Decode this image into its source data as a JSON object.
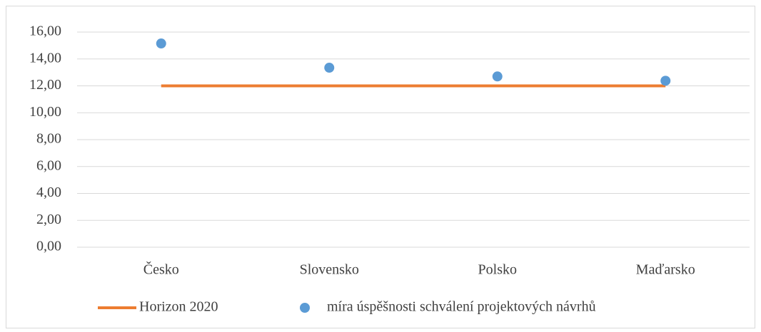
{
  "chart_data": {
    "type": "line",
    "categories": [
      "Česko",
      "Slovensko",
      "Polsko",
      "Maďarsko"
    ],
    "series": [
      {
        "name": "Horizon 2020",
        "type": "line",
        "color": "#ed7d31",
        "values": [
          12,
          12,
          12,
          12
        ]
      },
      {
        "name": "míra úspěšnosti schválení projektových návrhů",
        "type": "scatter",
        "color": "#5b9bd5",
        "values": [
          15.15,
          13.35,
          12.7,
          12.38
        ]
      }
    ],
    "ylim": [
      0,
      16
    ],
    "yticks": [
      {
        "value": 0,
        "label": "0,00"
      },
      {
        "value": 2,
        "label": "2,00"
      },
      {
        "value": 4,
        "label": "4,00"
      },
      {
        "value": 6,
        "label": "6,00"
      },
      {
        "value": 8,
        "label": "8,00"
      },
      {
        "value": 10,
        "label": "10,00"
      },
      {
        "value": 12,
        "label": "12,00"
      },
      {
        "value": 14,
        "label": "14,00"
      },
      {
        "value": 16,
        "label": "16,00"
      }
    ],
    "grid": true,
    "legend": "bottom"
  }
}
